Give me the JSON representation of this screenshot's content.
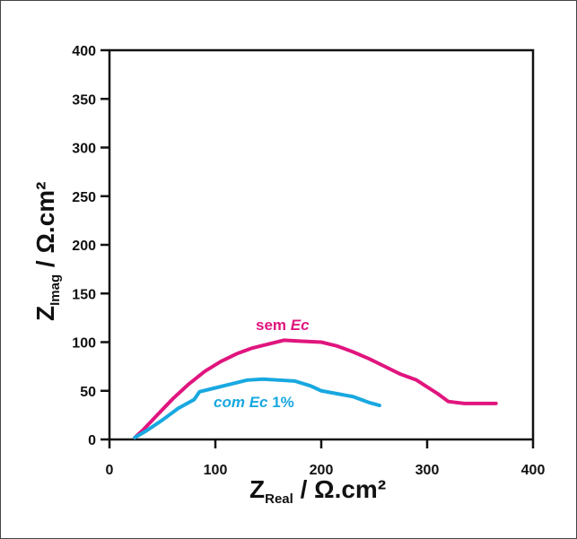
{
  "chart_data": {
    "type": "line",
    "title": "",
    "xlim": [
      0,
      400
    ],
    "ylim": [
      0,
      400
    ],
    "xticks": [
      "0",
      "100",
      "200",
      "300",
      "400"
    ],
    "yticks": [
      "0",
      "50",
      "100",
      "150",
      "200",
      "250",
      "300",
      "350",
      "400"
    ],
    "x_axis_title": {
      "main": "Z",
      "subscript": "Real",
      "unit": " / Ω.cm²"
    },
    "y_axis_title": {
      "main": "Z",
      "subscript": "Imag",
      "unit": " / Ω.cm²"
    },
    "grid": false,
    "legend": "inline labels",
    "series": [
      {
        "name": "sem Ec",
        "label_parts": [
          "sem ",
          "Ec"
        ],
        "color": "#e0157e",
        "points": [
          [
            24,
            2
          ],
          [
            32,
            10
          ],
          [
            45,
            25
          ],
          [
            60,
            42
          ],
          [
            75,
            57
          ],
          [
            90,
            70
          ],
          [
            105,
            80
          ],
          [
            120,
            88
          ],
          [
            135,
            94
          ],
          [
            150,
            98
          ],
          [
            165,
            102
          ],
          [
            180,
            101
          ],
          [
            200,
            100
          ],
          [
            215,
            96
          ],
          [
            230,
            90
          ],
          [
            245,
            83
          ],
          [
            260,
            75
          ],
          [
            275,
            67
          ],
          [
            290,
            61
          ],
          [
            300,
            54
          ],
          [
            310,
            47
          ],
          [
            320,
            39
          ],
          [
            335,
            37
          ],
          [
            350,
            37
          ],
          [
            365,
            37
          ]
        ]
      },
      {
        "name": "com Ec 1%",
        "label_parts": [
          "com ",
          "Ec",
          " 1%"
        ],
        "color": "#18a8e0",
        "points": [
          [
            24,
            2
          ],
          [
            35,
            9
          ],
          [
            50,
            20
          ],
          [
            65,
            32
          ],
          [
            80,
            41
          ],
          [
            85,
            49
          ],
          [
            100,
            53
          ],
          [
            115,
            57
          ],
          [
            130,
            61
          ],
          [
            145,
            62
          ],
          [
            160,
            61
          ],
          [
            175,
            60
          ],
          [
            190,
            55
          ],
          [
            200,
            50
          ],
          [
            215,
            47
          ],
          [
            230,
            44
          ],
          [
            245,
            38
          ],
          [
            255,
            35
          ]
        ]
      }
    ]
  }
}
